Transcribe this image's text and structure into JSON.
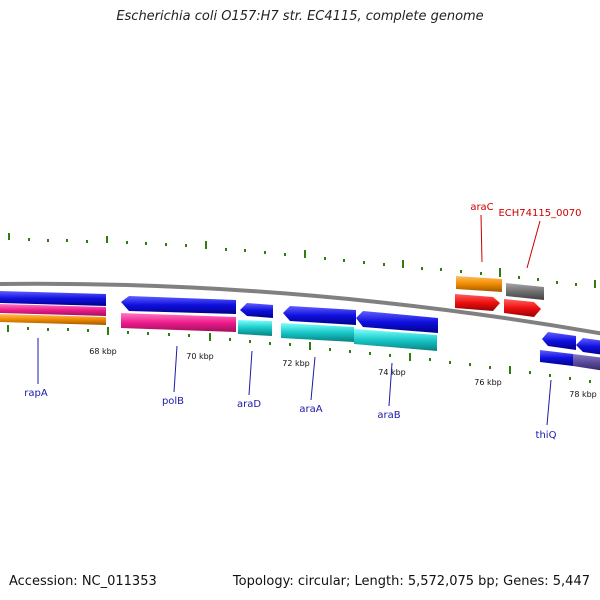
{
  "title": "Escherichia coli O157:H7 str. EC4115, complete genome",
  "footer": {
    "accession": "Accession: NC_011353",
    "summary": "Topology: circular; Length: 5,572,075 bp; Genes: 5,447"
  },
  "colors": {
    "backbone": "#808080",
    "tick": "#2e7d0e",
    "gene_label": "#1a1aa8",
    "top_label": "#cc0000",
    "blue": "#1010e0",
    "magenta": "#ee1c8c",
    "orange": "#f08a00",
    "cyan": "#18c8c8",
    "red": "#ee1111",
    "gray": "#707070",
    "slate": "#5a4a9a"
  },
  "kbp_labels": [
    "68 kbp",
    "70 kbp",
    "72 kbp",
    "74 kbp",
    "76 kbp",
    "78 kbp"
  ],
  "gene_labels": [
    "rapA",
    "polB",
    "araD",
    "araA",
    "araB",
    "thiQ"
  ],
  "top_labels": [
    "araC",
    "ECH74115_0070"
  ]
}
